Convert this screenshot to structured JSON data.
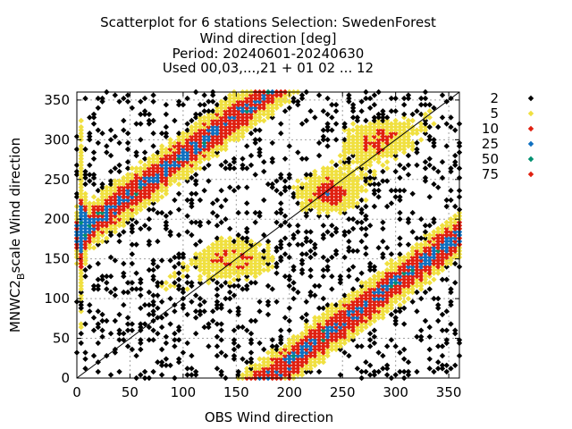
{
  "chart_data": {
    "type": "scatter",
    "title_lines": [
      "Scatterplot for    6 stations Selection: SwedenForest",
      "Wind direction [deg]",
      "Period: 20240601-20240630",
      "Used 00,03,...,21 + 01 02 ... 12"
    ],
    "xlabel": "OBS Wind direction",
    "ylabel_main": "MNWC2",
    "ylabel_sub": "B",
    "ylabel_rest": "scale Wind direction",
    "xlim": [
      0,
      360
    ],
    "ylim": [
      0,
      360
    ],
    "xticks": [
      0,
      50,
      100,
      150,
      200,
      250,
      300,
      350
    ],
    "yticks": [
      0,
      50,
      100,
      150,
      200,
      250,
      300,
      350
    ],
    "grid": true,
    "diagonal": true,
    "legend_position": "right",
    "series": [
      {
        "name": "2",
        "color": "#000000"
      },
      {
        "name": "5",
        "color": "#f0e040"
      },
      {
        "name": "10",
        "color": "#e02010"
      },
      {
        "name": "25",
        "color": "#1070c0"
      },
      {
        "name": "50",
        "color": "#009070"
      },
      {
        "name": "75",
        "color": "#e02010"
      }
    ],
    "density_bands": [
      {
        "x": 150,
        "y": 150,
        "sx": 40,
        "sy": 30,
        "level": 25
      },
      {
        "x": 285,
        "y": 300,
        "sx": 35,
        "sy": 30,
        "level": 25
      },
      {
        "x": 235,
        "y": 230,
        "sx": 30,
        "sy": 25,
        "level": 25
      },
      {
        "x": 5,
        "y": 200,
        "sx": 3,
        "sy": 150,
        "level": 25
      },
      {
        "x": 90,
        "y": 120,
        "sx": 40,
        "sy": 40,
        "level": 10
      },
      {
        "x": 250,
        "y": 255,
        "sx": 45,
        "sy": 40,
        "level": 10
      },
      {
        "x": 330,
        "y": 330,
        "sx": 25,
        "sy": 25,
        "level": 10
      }
    ]
  }
}
